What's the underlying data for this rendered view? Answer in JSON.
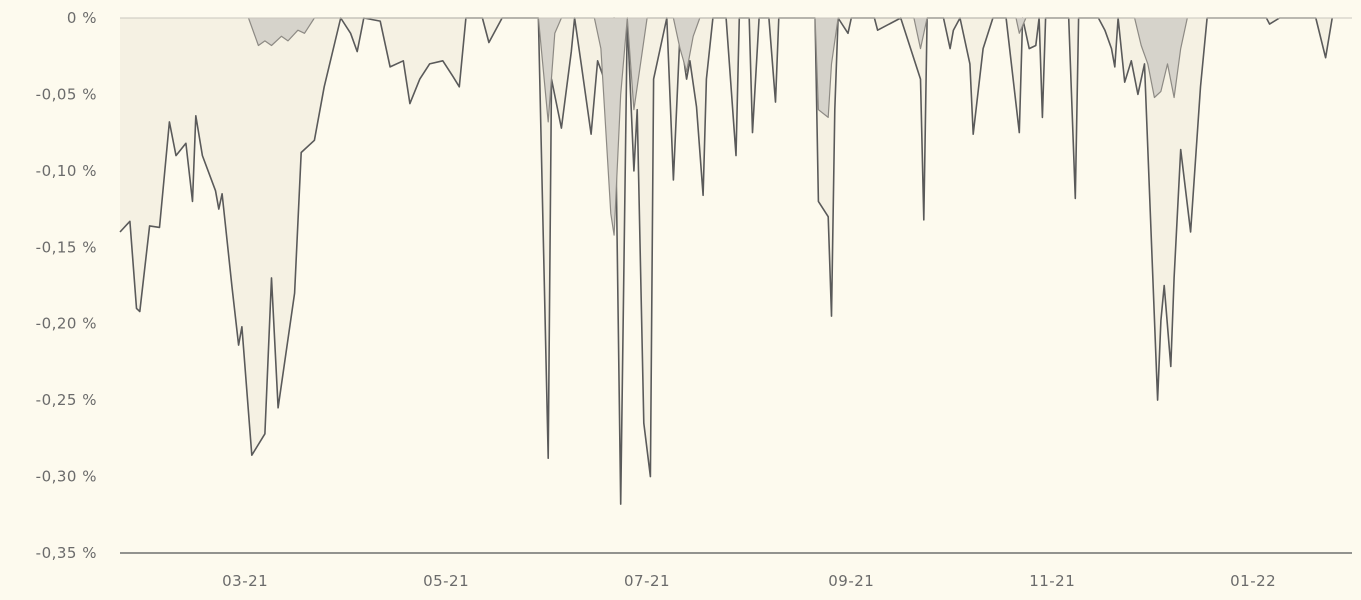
{
  "chart_data": {
    "type": "area",
    "title": "",
    "xlabel": "",
    "ylabel": "",
    "x_range": [
      "2021-01-22",
      "2022-01-31"
    ],
    "ylim": [
      -0.35,
      0
    ],
    "y_ticks": [
      {
        "value": 0,
        "label": "0 %"
      },
      {
        "value": -0.05,
        "label": "-0,05 %"
      },
      {
        "value": -0.1,
        "label": "-0,10 %"
      },
      {
        "value": -0.15,
        "label": "-0,15 %"
      },
      {
        "value": -0.2,
        "label": "-0,20 %"
      },
      {
        "value": -0.25,
        "label": "-0,25 %"
      },
      {
        "value": -0.3,
        "label": "-0,30 %"
      },
      {
        "value": -0.35,
        "label": "-0,35 %"
      }
    ],
    "x_ticks": [
      {
        "date": "2021-03-01",
        "label": "03-21"
      },
      {
        "date": "2021-05-01",
        "label": "05-21"
      },
      {
        "date": "2021-07-01",
        "label": "07-21"
      },
      {
        "date": "2021-09-01",
        "label": "09-21"
      },
      {
        "date": "2021-11-01",
        "label": "11-21"
      },
      {
        "date": "2022-01-01",
        "label": "01-22"
      }
    ],
    "grid": false,
    "legend": "none",
    "colors": {
      "background": "#fdfaee",
      "outer_line": "#5a5a5a",
      "inner_fill": "#d6d3cb",
      "inner_line": "#8d8a84",
      "axis": "#6f6f6f",
      "tick_text": "#6b6b6b"
    },
    "series": [
      {
        "points": [
          [
            "2021-01-22",
            -0.14
          ],
          [
            "2021-01-25",
            -0.133
          ],
          [
            "2021-01-27",
            -0.19
          ],
          [
            "2021-01-28",
            -0.192
          ],
          [
            "2021-01-31",
            -0.136
          ],
          [
            "2021-02-03",
            -0.137
          ],
          [
            "2021-02-06",
            -0.068
          ],
          [
            "2021-02-08",
            -0.09
          ],
          [
            "2021-02-11",
            -0.082
          ],
          [
            "2021-02-13",
            -0.12
          ],
          [
            "2021-02-14",
            -0.064
          ],
          [
            "2021-02-16",
            -0.09
          ],
          [
            "2021-02-20",
            -0.113
          ],
          [
            "2021-02-21",
            -0.125
          ],
          [
            "2021-02-22",
            -0.115
          ],
          [
            "2021-02-25",
            -0.176
          ],
          [
            "2021-02-27",
            -0.214
          ],
          [
            "2021-02-28",
            -0.202
          ],
          [
            "2021-03-03",
            -0.286
          ],
          [
            "2021-03-07",
            -0.272
          ],
          [
            "2021-03-09",
            -0.17
          ],
          [
            "2021-03-11",
            -0.255
          ],
          [
            "2021-03-16",
            -0.18
          ],
          [
            "2021-03-18",
            -0.088
          ],
          [
            "2021-03-22",
            -0.08
          ],
          [
            "2021-03-25",
            -0.045
          ],
          [
            "2021-03-30",
            0
          ],
          [
            "2021-04-02",
            -0.01
          ],
          [
            "2021-04-04",
            -0.022
          ],
          [
            "2021-04-06",
            0
          ],
          [
            "2021-04-11",
            -0.002
          ],
          [
            "2021-04-14",
            -0.032
          ],
          [
            "2021-04-18",
            -0.028
          ],
          [
            "2021-04-20",
            -0.056
          ],
          [
            "2021-04-23",
            -0.04
          ],
          [
            "2021-04-26",
            -0.03
          ],
          [
            "2021-04-30",
            -0.028
          ],
          [
            "2021-05-03",
            -0.038
          ],
          [
            "2021-05-05",
            -0.045
          ],
          [
            "2021-05-07",
            0
          ],
          [
            "2021-05-12",
            0
          ],
          [
            "2021-05-14",
            -0.016
          ],
          [
            "2021-05-18",
            0
          ],
          [
            "2021-05-29",
            0
          ],
          [
            "2021-06-01",
            -0.288
          ],
          [
            "2021-06-02",
            -0.04
          ],
          [
            "2021-06-05",
            -0.072
          ],
          [
            "2021-06-08",
            -0.022
          ],
          [
            "2021-06-09",
            0
          ],
          [
            "2021-06-11",
            -0.03
          ],
          [
            "2021-06-14",
            -0.076
          ],
          [
            "2021-06-16",
            -0.028
          ],
          [
            "2021-06-18",
            -0.04
          ],
          [
            "2021-06-21",
            0
          ],
          [
            "2021-06-23",
            -0.318
          ],
          [
            "2021-06-25",
            0
          ],
          [
            "2021-06-27",
            -0.1
          ],
          [
            "2021-06-28",
            -0.06
          ],
          [
            "2021-06-30",
            -0.265
          ],
          [
            "2021-07-02",
            -0.3
          ],
          [
            "2021-07-03",
            -0.04
          ],
          [
            "2021-07-07",
            0
          ],
          [
            "2021-07-09",
            -0.106
          ],
          [
            "2021-07-11",
            -0.01
          ],
          [
            "2021-07-13",
            -0.04
          ],
          [
            "2021-07-14",
            -0.028
          ],
          [
            "2021-07-16",
            -0.058
          ],
          [
            "2021-07-18",
            -0.116
          ],
          [
            "2021-07-19",
            -0.04
          ],
          [
            "2021-07-21",
            0
          ],
          [
            "2021-07-25",
            0
          ],
          [
            "2021-07-28",
            -0.09
          ],
          [
            "2021-07-29",
            0
          ],
          [
            "2021-08-01",
            0
          ],
          [
            "2021-08-02",
            -0.075
          ],
          [
            "2021-08-04",
            0
          ],
          [
            "2021-08-07",
            0
          ],
          [
            "2021-08-09",
            -0.055
          ],
          [
            "2021-08-10",
            0
          ],
          [
            "2021-08-21",
            0
          ],
          [
            "2021-08-22",
            -0.12
          ],
          [
            "2021-08-25",
            -0.13
          ],
          [
            "2021-08-26",
            -0.195
          ],
          [
            "2021-08-27",
            -0.06
          ],
          [
            "2021-08-28",
            0
          ],
          [
            "2021-08-31",
            -0.01
          ],
          [
            "2021-09-01",
            0
          ],
          [
            "2021-09-08",
            0
          ],
          [
            "2021-09-09",
            -0.008
          ],
          [
            "2021-09-16",
            0
          ],
          [
            "2021-09-22",
            -0.04
          ],
          [
            "2021-09-23",
            -0.132
          ],
          [
            "2021-09-24",
            0
          ],
          [
            "2021-09-29",
            0
          ],
          [
            "2021-10-01",
            -0.02
          ],
          [
            "2021-10-02",
            -0.008
          ],
          [
            "2021-10-04",
            0
          ],
          [
            "2021-10-07",
            -0.03
          ],
          [
            "2021-10-08",
            -0.076
          ],
          [
            "2021-10-11",
            -0.02
          ],
          [
            "2021-10-14",
            0
          ],
          [
            "2021-10-18",
            0
          ],
          [
            "2021-10-22",
            -0.075
          ],
          [
            "2021-10-23",
            0
          ],
          [
            "2021-10-25",
            -0.02
          ],
          [
            "2021-10-27",
            -0.018
          ],
          [
            "2021-10-28",
            0
          ],
          [
            "2021-10-29",
            -0.065
          ],
          [
            "2021-10-30",
            0
          ],
          [
            "2021-11-06",
            0
          ],
          [
            "2021-11-08",
            -0.118
          ],
          [
            "2021-11-09",
            0
          ],
          [
            "2021-11-15",
            0
          ],
          [
            "2021-11-17",
            -0.008
          ],
          [
            "2021-11-19",
            -0.02
          ],
          [
            "2021-11-20",
            -0.032
          ],
          [
            "2021-11-21",
            0
          ],
          [
            "2021-11-23",
            -0.042
          ],
          [
            "2021-11-25",
            -0.028
          ],
          [
            "2021-11-27",
            -0.05
          ],
          [
            "2021-11-29",
            -0.03
          ],
          [
            "2021-12-03",
            -0.25
          ],
          [
            "2021-12-04",
            -0.198
          ],
          [
            "2021-12-05",
            -0.175
          ],
          [
            "2021-12-07",
            -0.228
          ],
          [
            "2021-12-08",
            -0.17
          ],
          [
            "2021-12-10",
            -0.086
          ],
          [
            "2021-12-13",
            -0.14
          ],
          [
            "2021-12-16",
            -0.045
          ],
          [
            "2021-12-18",
            0
          ],
          [
            "2022-01-05",
            0
          ],
          [
            "2022-01-06",
            -0.004
          ],
          [
            "2022-01-09",
            0
          ],
          [
            "2022-01-20",
            0
          ],
          [
            "2022-01-23",
            -0.026
          ],
          [
            "2022-01-25",
            0
          ]
        ]
      },
      {
        "points": [
          [
            "2021-03-02",
            0
          ],
          [
            "2021-03-05",
            -0.018
          ],
          [
            "2021-03-07",
            -0.015
          ],
          [
            "2021-03-09",
            -0.018
          ],
          [
            "2021-03-12",
            -0.012
          ],
          [
            "2021-03-14",
            -0.015
          ],
          [
            "2021-03-17",
            -0.008
          ],
          [
            "2021-03-19",
            -0.01
          ],
          [
            "2021-03-22",
            0
          ],
          [
            "2021-05-29",
            0
          ],
          [
            "2021-06-01",
            -0.068
          ],
          [
            "2021-06-03",
            -0.01
          ],
          [
            "2021-06-05",
            0
          ],
          [
            "2021-06-15",
            0
          ],
          [
            "2021-06-17",
            -0.02
          ],
          [
            "2021-06-20",
            -0.128
          ],
          [
            "2021-06-21",
            -0.142
          ],
          [
            "2021-06-23",
            -0.05
          ],
          [
            "2021-06-25",
            0
          ],
          [
            "2021-06-27",
            -0.06
          ],
          [
            "2021-06-29",
            -0.03
          ],
          [
            "2021-07-01",
            0
          ],
          [
            "2021-07-09",
            0
          ],
          [
            "2021-07-11",
            -0.02
          ],
          [
            "2021-07-13",
            -0.035
          ],
          [
            "2021-07-15",
            -0.012
          ],
          [
            "2021-07-17",
            0
          ],
          [
            "2021-08-21",
            0
          ],
          [
            "2021-08-22",
            -0.06
          ],
          [
            "2021-08-25",
            -0.065
          ],
          [
            "2021-08-26",
            -0.03
          ],
          [
            "2021-08-28",
            0
          ],
          [
            "2021-09-20",
            0
          ],
          [
            "2021-09-22",
            -0.02
          ],
          [
            "2021-09-24",
            0
          ],
          [
            "2021-10-21",
            0
          ],
          [
            "2021-10-22",
            -0.01
          ],
          [
            "2021-10-24",
            0
          ],
          [
            "2021-11-26",
            0
          ],
          [
            "2021-11-28",
            -0.018
          ],
          [
            "2021-11-30",
            -0.03
          ],
          [
            "2021-12-02",
            -0.052
          ],
          [
            "2021-12-04",
            -0.048
          ],
          [
            "2021-12-06",
            -0.03
          ],
          [
            "2021-12-08",
            -0.052
          ],
          [
            "2021-12-10",
            -0.02
          ],
          [
            "2021-12-12",
            0
          ]
        ]
      }
    ]
  }
}
